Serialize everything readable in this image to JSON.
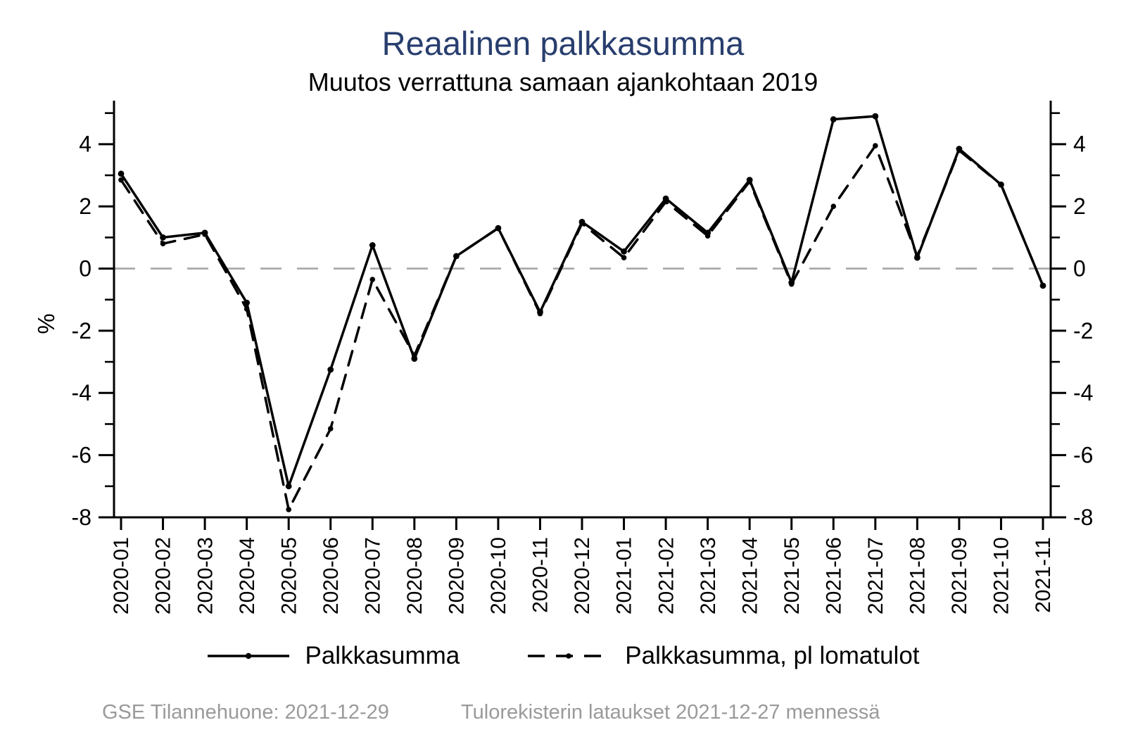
{
  "title": "Reaalinen palkkasumma",
  "subtitle": "Muutos verrattuna samaan ajankohtaan 2019",
  "ylabel": "%",
  "legend": {
    "items": [
      {
        "label": "Palkkasumma",
        "style": "solid"
      },
      {
        "label": "Palkkasumma, pl lomatulot",
        "style": "dashed"
      }
    ]
  },
  "footer": {
    "left": "GSE Tilannehuone: 2021-12-29",
    "right": "Tulorekisterin lataukset 2021-12-27 mennessä"
  },
  "colors": {
    "title": "#283e6e",
    "series_line": "#000000",
    "zero_line": "#a6a6a6",
    "footer_text": "#9a9a9a",
    "axis": "#000000"
  },
  "chart_data": {
    "type": "line",
    "x": [
      "2020-01",
      "2020-02",
      "2020-03",
      "2020-04",
      "2020-05",
      "2020-06",
      "2020-07",
      "2020-08",
      "2020-09",
      "2020-10",
      "2020-11",
      "2020-12",
      "2021-01",
      "2021-02",
      "2021-03",
      "2021-04",
      "2021-05",
      "2021-06",
      "2021-07",
      "2021-08",
      "2021-09",
      "2021-10",
      "2021-11"
    ],
    "series": [
      {
        "name": "Palkkasumma",
        "style": "solid",
        "values": [
          3.05,
          1.0,
          1.15,
          -1.1,
          -7.0,
          -3.25,
          0.75,
          -2.9,
          0.4,
          1.3,
          -1.4,
          1.5,
          0.55,
          2.25,
          1.15,
          2.85,
          -0.45,
          4.8,
          4.9,
          0.35,
          3.85,
          2.7,
          -0.55
        ]
      },
      {
        "name": "Palkkasumma, pl lomatulot",
        "style": "dashed",
        "values": [
          2.85,
          0.8,
          1.1,
          -1.3,
          -7.75,
          -5.15,
          -0.35,
          -2.8,
          0.4,
          1.3,
          -1.45,
          1.45,
          0.35,
          2.15,
          1.05,
          2.8,
          -0.5,
          2.0,
          3.95,
          0.4,
          3.8,
          2.7,
          -0.55
        ]
      }
    ],
    "title": "Reaalinen palkkasumma",
    "xlabel": "",
    "ylabel": "%",
    "ylim": [
      -8,
      5.4
    ],
    "yticks_major": [
      4,
      2,
      0,
      -2,
      -4,
      -6,
      -8
    ],
    "yticks_minor": [
      5,
      3,
      1,
      -1,
      -3,
      -5,
      -7
    ],
    "zero_line": 0,
    "grid": false,
    "legend_position": "bottom",
    "dual_y_axis": true
  }
}
